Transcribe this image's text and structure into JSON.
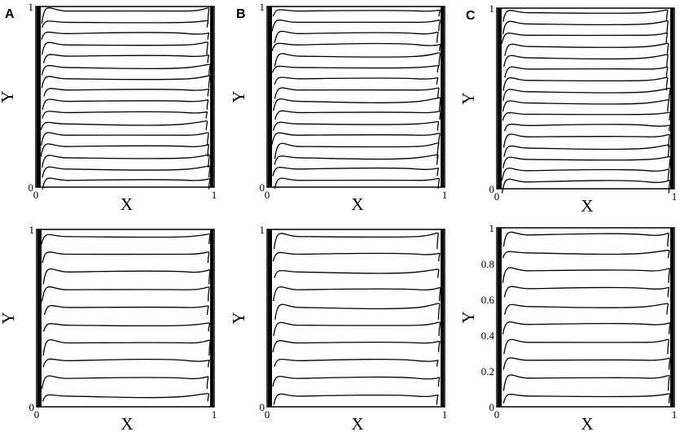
{
  "panels": [
    {
      "letter": "A",
      "x_label": "X",
      "y_label": "Y",
      "x_ticks": [
        "0",
        "1"
      ],
      "y_ticks": [
        "0",
        "1"
      ]
    },
    {
      "letter": "B",
      "x_label": "X",
      "y_label": "Y",
      "x_ticks": [
        "0",
        "1"
      ],
      "y_ticks": [
        "0",
        "1"
      ]
    },
    {
      "letter": "C",
      "x_label": "X",
      "y_label": "Y",
      "x_ticks": [
        "0",
        "1"
      ],
      "y_ticks": [
        "0",
        "1"
      ]
    },
    {
      "x_label": "X",
      "y_label": "Y",
      "x_ticks": [
        "0",
        "1"
      ],
      "y_ticks": [
        "0",
        "1"
      ]
    },
    {
      "x_label": "X",
      "y_label": "Y",
      "x_ticks": [
        "0",
        "1"
      ],
      "y_ticks": [
        "0",
        "1"
      ]
    },
    {
      "x_label": "X",
      "y_label": "Y",
      "x_ticks": [
        "0",
        "1"
      ],
      "y_ticks": [
        "0",
        "0.2",
        "0.4",
        "0.6",
        "0.8",
        "1"
      ]
    }
  ]
}
